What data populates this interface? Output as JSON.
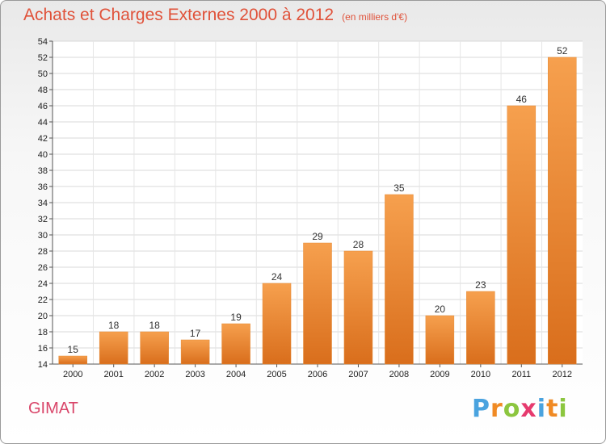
{
  "header": {
    "title": "Achats et Charges Externes 2000 à 2012",
    "unit": "(en milliers d'€)"
  },
  "footer": {
    "commune": "GIMAT",
    "brand": "Proxiti"
  },
  "colors": {
    "bar_light": "#f6a04e",
    "bar_dark": "#d96e1c",
    "title": "#e0523a",
    "commune": "#d9466a",
    "brand_letters": [
      "#4aa3df",
      "#f08a24",
      "#8cc63f",
      "#e63a6e",
      "#4aa3df",
      "#f08a24",
      "#8cc63f"
    ]
  },
  "chart_data": {
    "type": "bar",
    "categories": [
      "2000",
      "2001",
      "2002",
      "2003",
      "2004",
      "2005",
      "2006",
      "2007",
      "2008",
      "2009",
      "2010",
      "2011",
      "2012"
    ],
    "values": [
      15,
      18,
      18,
      17,
      19,
      24,
      29,
      28,
      35,
      20,
      23,
      46,
      52
    ],
    "ylim": [
      14,
      54
    ],
    "yticks": [
      14,
      16,
      18,
      20,
      22,
      24,
      26,
      28,
      30,
      32,
      34,
      36,
      38,
      40,
      42,
      44,
      46,
      48,
      50,
      52,
      54
    ],
    "grid": true,
    "title": "Achats et Charges Externes 2000 à 2012",
    "xlabel": "",
    "ylabel": ""
  }
}
